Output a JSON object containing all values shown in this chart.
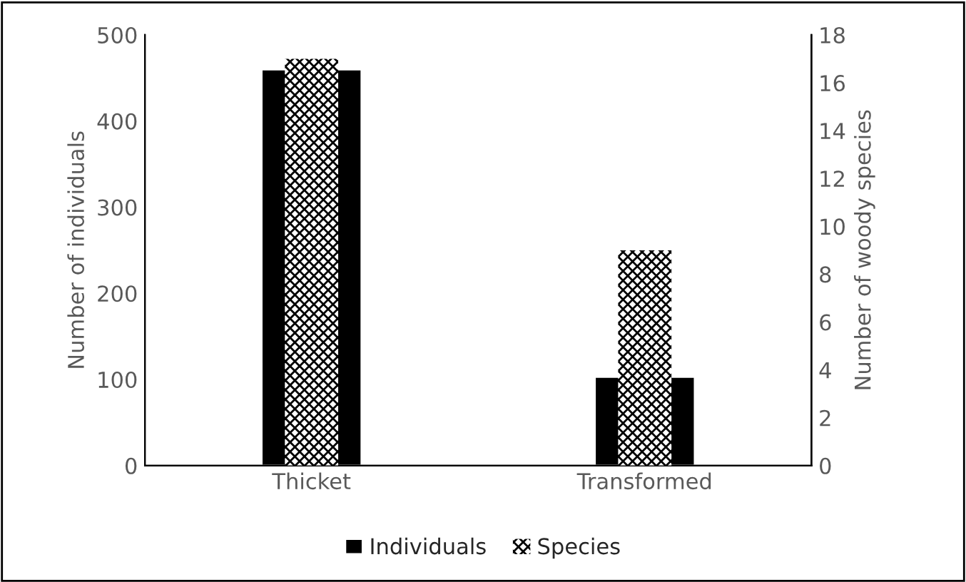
{
  "chart_data": {
    "type": "bar",
    "categories": [
      "Thicket",
      "Transformed"
    ],
    "ylabel": "Number of individuals",
    "y2label": "Number of woody species",
    "ylim": [
      0,
      500
    ],
    "yticks": [
      0,
      100,
      200,
      300,
      400,
      500
    ],
    "y2lim": [
      0,
      18
    ],
    "y2ticks": [
      0,
      2,
      4,
      6,
      8,
      10,
      12,
      14,
      16,
      18
    ],
    "series": [
      {
        "name": "Individuals",
        "color": "#000000",
        "values": [
          460,
          103
        ]
      },
      {
        "name": "Species",
        "color": "#000000",
        "values": [
          17,
          9
        ],
        "axis": "y2"
      }
    ],
    "grid": false,
    "legend": "bottom"
  }
}
